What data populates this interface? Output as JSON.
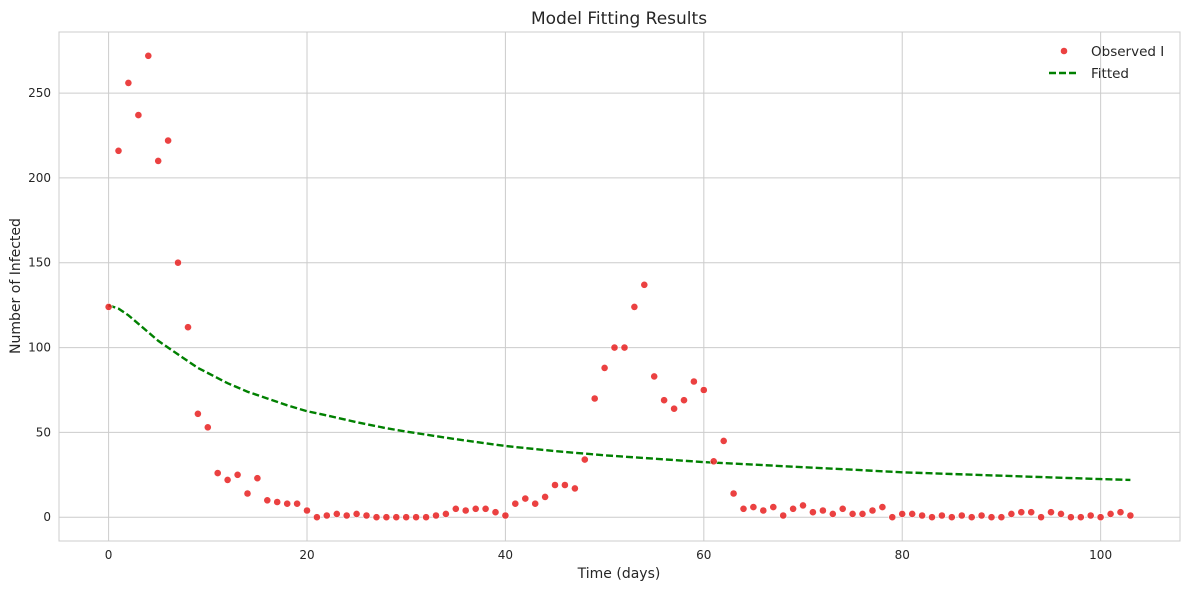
{
  "chart_data": {
    "type": "scatter",
    "title": "Model Fitting Results",
    "xlabel": "Time (days)",
    "ylabel": "Number of Infected",
    "xlim": [
      -5,
      108
    ],
    "ylim": [
      -14,
      286
    ],
    "xticks": [
      0,
      20,
      40,
      60,
      80,
      100
    ],
    "yticks": [
      0,
      50,
      100,
      150,
      200,
      250
    ],
    "grid": true,
    "legend_position": "top-right",
    "series": [
      {
        "name": "Observed I",
        "kind": "scatter",
        "color": "#e82020",
        "x": [
          0,
          1,
          2,
          3,
          4,
          5,
          6,
          7,
          8,
          9,
          10,
          11,
          12,
          13,
          14,
          15,
          16,
          17,
          18,
          19,
          20,
          21,
          22,
          23,
          24,
          25,
          26,
          27,
          28,
          29,
          30,
          31,
          32,
          33,
          34,
          35,
          36,
          37,
          38,
          39,
          40,
          41,
          42,
          43,
          44,
          45,
          46,
          47,
          48,
          49,
          50,
          51,
          52,
          53,
          54,
          55,
          56,
          57,
          58,
          59,
          60,
          61,
          62,
          63,
          64,
          65,
          66,
          67,
          68,
          69,
          70,
          71,
          72,
          73,
          74,
          75,
          76,
          77,
          78,
          79,
          80,
          81,
          82,
          83,
          84,
          85,
          86,
          87,
          88,
          89,
          90,
          91,
          92,
          93,
          94,
          95,
          96,
          97,
          98,
          99,
          100,
          101,
          102,
          103
        ],
        "y": [
          124,
          216,
          256,
          237,
          272,
          210,
          222,
          150,
          112,
          61,
          53,
          26,
          22,
          25,
          14,
          23,
          10,
          9,
          8,
          8,
          4,
          0,
          1,
          2,
          1,
          2,
          1,
          0,
          0,
          0,
          0,
          0,
          0,
          1,
          2,
          5,
          4,
          5,
          5,
          3,
          1,
          8,
          11,
          8,
          12,
          19,
          19,
          17,
          34,
          70,
          88,
          100,
          100,
          124,
          137,
          83,
          69,
          64,
          69,
          80,
          75,
          33,
          45,
          14,
          5,
          6,
          4,
          6,
          1,
          5,
          7,
          3,
          4,
          2,
          5,
          2,
          2,
          4,
          6,
          0,
          2,
          2,
          1,
          0,
          1,
          0,
          1,
          0,
          1,
          0,
          0,
          2,
          3,
          3,
          0,
          3,
          2,
          0,
          0,
          1,
          0,
          2,
          3,
          1
        ]
      },
      {
        "name": "Fitted",
        "kind": "line",
        "style": "dashed",
        "color": "#008000",
        "x": [
          0,
          1,
          2,
          3,
          4,
          5,
          6,
          7,
          8,
          9,
          10,
          12,
          14,
          16,
          18,
          20,
          22,
          25,
          28,
          30,
          35,
          40,
          45,
          50,
          55,
          60,
          65,
          70,
          75,
          80,
          85,
          90,
          95,
          100,
          103
        ],
        "y": [
          125,
          123,
          119,
          114,
          109,
          104,
          100,
          96,
          92,
          88,
          85,
          79,
          74,
          70,
          66,
          62.5,
          60,
          56,
          52.5,
          50.5,
          46,
          42,
          39,
          36.5,
          34.5,
          32.5,
          31,
          29.5,
          28,
          26.5,
          25.5,
          24.5,
          23.5,
          22.5,
          22
        ]
      }
    ]
  }
}
